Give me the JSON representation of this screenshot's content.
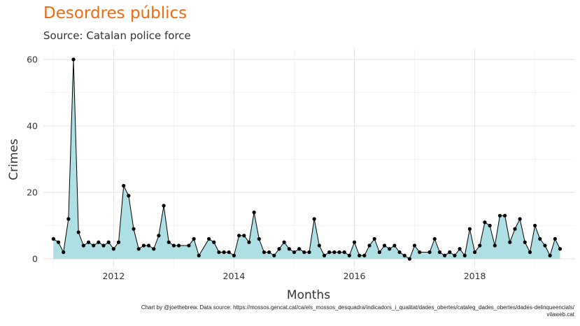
{
  "chart_data": {
    "type": "area",
    "title": "Desordres públics",
    "subtitle": "Source: Catalan police force",
    "xlabel": "Months",
    "ylabel": "Crimes",
    "caption_line1": "Chart by @joethebrew. Data source: https://mossos.gencat.cat/ca/els_mossos_desquadra/indicadors_i_qualitat/dades_obertes/cataleg_dades_obertes/dades-delinqueencials/",
    "caption_line2": "vilaweb.cat",
    "x_ticks": [
      "2012",
      "2014",
      "2016",
      "2018"
    ],
    "y_ticks": [
      "0",
      "20",
      "40",
      "60"
    ],
    "xlim": [
      "2010-11",
      "2019-09"
    ],
    "ylim": [
      0,
      62
    ],
    "grid": true,
    "fill_color": "#addfe5",
    "line_color": "#000000",
    "title_color": "#f26a10",
    "series": [
      {
        "x": [
          "2011-01",
          "2011-02",
          "2011-03",
          "2011-04",
          "2011-05",
          "2011-06",
          "2011-07",
          "2011-08",
          "2011-09",
          "2011-10",
          "2011-11",
          "2011-12",
          "2012-01",
          "2012-02",
          "2012-03",
          "2012-04",
          "2012-05",
          "2012-06",
          "2012-07",
          "2012-08",
          "2012-09",
          "2012-10",
          "2012-11",
          "2012-12",
          "2013-01",
          "2013-02",
          "2013-04",
          "2013-05",
          "2013-06",
          "2013-08",
          "2013-09",
          "2013-10",
          "2013-11",
          "2013-12",
          "2014-01",
          "2014-02",
          "2014-03",
          "2014-04",
          "2014-05",
          "2014-06",
          "2014-07",
          "2014-08",
          "2014-09",
          "2014-10",
          "2014-11",
          "2014-12",
          "2015-01",
          "2015-02",
          "2015-03",
          "2015-04",
          "2015-05",
          "2015-06",
          "2015-07",
          "2015-08",
          "2015-09",
          "2015-10",
          "2015-11",
          "2015-12",
          "2016-01",
          "2016-02",
          "2016-03",
          "2016-04",
          "2016-05",
          "2016-06",
          "2016-07",
          "2016-08",
          "2016-09",
          "2016-10",
          "2016-11",
          "2016-12",
          "2017-01",
          "2017-02",
          "2017-04",
          "2017-05",
          "2017-06",
          "2017-07",
          "2017-08",
          "2017-09",
          "2017-10",
          "2017-11",
          "2017-12",
          "2018-01",
          "2018-02",
          "2018-03",
          "2018-04",
          "2018-05",
          "2018-06",
          "2018-07",
          "2018-08",
          "2018-09",
          "2018-10",
          "2018-11",
          "2018-12",
          "2019-01",
          "2019-02",
          "2019-03",
          "2019-04",
          "2019-05",
          "2019-06"
        ],
        "values": [
          6,
          5,
          2,
          12,
          60,
          8,
          4,
          5,
          4,
          5,
          4,
          5,
          3,
          5,
          22,
          19,
          9,
          3,
          4,
          4,
          3,
          7,
          16,
          5,
          4,
          4,
          4,
          6,
          1,
          6,
          5,
          2,
          2,
          2,
          1,
          7,
          7,
          5,
          14,
          6,
          2,
          2,
          1,
          3,
          5,
          3,
          2,
          3,
          2,
          2,
          12,
          4,
          1,
          2,
          2,
          2,
          2,
          1,
          5,
          1,
          1,
          4,
          6,
          2,
          4,
          3,
          4,
          2,
          1,
          0,
          4,
          2,
          2,
          6,
          2,
          1,
          2,
          1,
          3,
          1,
          9,
          2,
          4,
          11,
          10,
          4,
          13,
          13,
          5,
          9,
          12,
          5,
          2,
          10,
          6,
          4,
          1,
          6,
          3
        ]
      }
    ]
  }
}
